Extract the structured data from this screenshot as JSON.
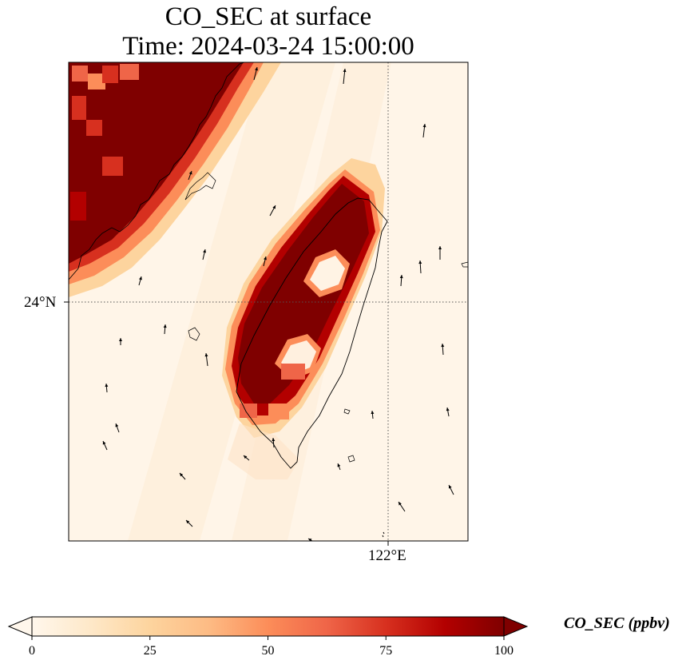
{
  "title": {
    "line1": "CO_SEC at surface",
    "line2": "Time: 2024-03-24 15:00:00"
  },
  "map": {
    "lat_tick_label": "24°N",
    "lon_tick_label": "122°E",
    "gridline_style": "dotted",
    "coastline_color": "#000000"
  },
  "colorbar": {
    "label": "CO_SEC (ppbv)",
    "min": 0,
    "max": 100,
    "tick_labels": [
      "0",
      "25",
      "50",
      "75",
      "100"
    ],
    "colormap": "OrRd",
    "colors": [
      "#fff7ec",
      "#fee8c8",
      "#fdd49e",
      "#fdbb84",
      "#fc8d59",
      "#ef6548",
      "#d7301f",
      "#b30000",
      "#7f0000"
    ],
    "extend": "both"
  },
  "plumes": [
    {
      "name": "mainland-coast-plume",
      "level": "high (>100 ppbv core)"
    },
    {
      "name": "taiwan-plume",
      "level": "high (>100 ppbv core)"
    }
  ],
  "wind_vectors": "black arrows, predominantly northward / northwestward"
}
